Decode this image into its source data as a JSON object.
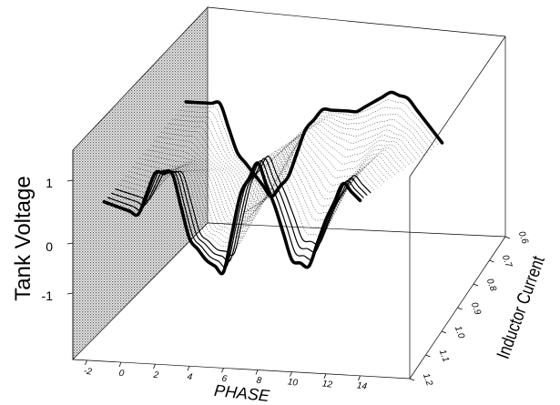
{
  "chart_data": {
    "type": "line",
    "subtype": "3d-waterfall",
    "title": "",
    "xlabel": "PHASE",
    "ylabel": "Inductor Current",
    "zlabel": "Tank Voltage",
    "x_ticks": [
      "-2",
      "0",
      "2",
      "4",
      "6",
      "8",
      "10",
      "12",
      "14"
    ],
    "y_ticks": [
      "0.6",
      "0.7",
      "0.8",
      "0.9",
      "1.0",
      "1.1",
      "1.2"
    ],
    "z_ticks": [
      "-1",
      "0",
      "1"
    ],
    "xlim": [
      -3,
      15.5
    ],
    "ylim": [
      0.6,
      1.2
    ],
    "zlim": [
      -1.5,
      1.6
    ],
    "grid": false,
    "back_wall_shaded": true,
    "n_traces": 24,
    "series": [
      {
        "description": "trace nearest the phase axis (bold)",
        "x": [
          -1,
          0,
          1,
          2,
          3,
          4,
          5,
          6,
          7,
          8,
          9,
          10,
          11,
          12,
          13,
          14
        ],
        "y": [
          1.2,
          1.2,
          1.2,
          1.2,
          1.2,
          1.2,
          1.2,
          1.2,
          1.2,
          1.2,
          1.2,
          1.2,
          1.2,
          1.2,
          1.2,
          1.2
        ],
        "z": [
          0.4,
          0.3,
          0.2,
          1.0,
          1.0,
          -0.2,
          -0.6,
          -0.8,
          0.7,
          1.3,
          0.5,
          -0.5,
          -0.6,
          0.3,
          1.0,
          0.7
        ]
      },
      {
        "description": "trace at the far end of the inductor-current axis (bold)",
        "x": [
          0,
          1,
          2,
          3,
          4,
          5,
          6,
          7,
          8,
          9,
          10,
          11,
          12,
          13,
          14
        ],
        "y": [
          0.6,
          0.6,
          0.6,
          0.6,
          0.6,
          0.6,
          0.6,
          0.6,
          0.6,
          0.6,
          0.6,
          0.6,
          0.6,
          0.6,
          0.6
        ],
        "z": [
          1.0,
          1.0,
          0.1,
          -0.3,
          -0.7,
          -0.3,
          0.6,
          1.0,
          1.0,
          1.0,
          1.2,
          1.4,
          1.3,
          0.9,
          0.5
        ]
      }
    ]
  }
}
